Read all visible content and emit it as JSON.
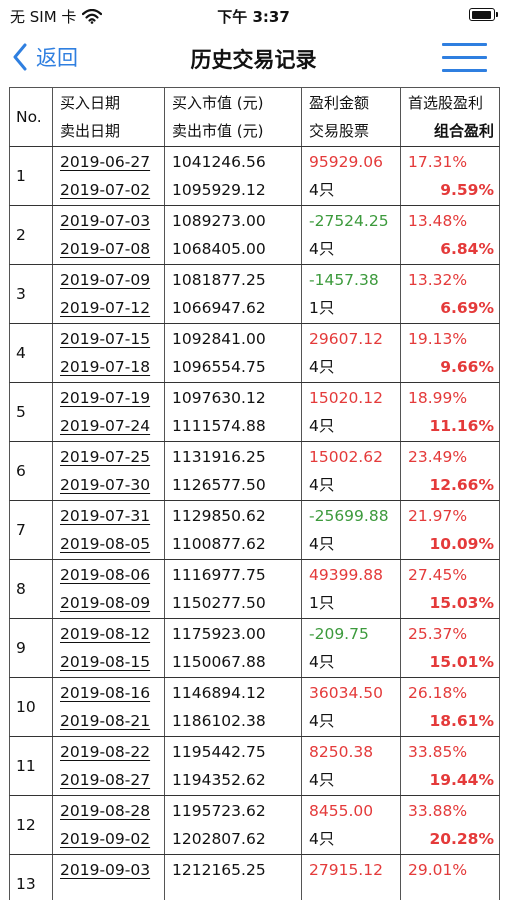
{
  "status": {
    "carrier": "无 SIM 卡",
    "time": "下午 3:37"
  },
  "nav": {
    "back_label": "返回",
    "title": "历史交易记录"
  },
  "table": {
    "header": {
      "no": "No.",
      "buy_date": "买入日期",
      "sell_date": "卖出日期",
      "buy_value": "买入市值 (元)",
      "sell_value": "卖出市值 (元)",
      "profit": "盈利金额",
      "stocks": "交易股票",
      "first_profit": "首选股盈利",
      "combo_profit": "组合盈利"
    },
    "rows": [
      {
        "no": "1",
        "buy_date": "2019-06-27",
        "sell_date": "2019-07-02",
        "buy_value": "1041246.56",
        "sell_value": "1095929.12",
        "profit": "95929.06",
        "stocks": "4只",
        "first_profit": "17.31%",
        "combo_profit": "9.59%"
      },
      {
        "no": "2",
        "buy_date": "2019-07-03",
        "sell_date": "2019-07-08",
        "buy_value": "1089273.00",
        "sell_value": "1068405.00",
        "profit": "-27524.25",
        "stocks": "4只",
        "first_profit": "13.48%",
        "combo_profit": "6.84%"
      },
      {
        "no": "3",
        "buy_date": "2019-07-09",
        "sell_date": "2019-07-12",
        "buy_value": "1081877.25",
        "sell_value": "1066947.62",
        "profit": "-1457.38",
        "stocks": "1只",
        "first_profit": "13.32%",
        "combo_profit": "6.69%"
      },
      {
        "no": "4",
        "buy_date": "2019-07-15",
        "sell_date": "2019-07-18",
        "buy_value": "1092841.00",
        "sell_value": "1096554.75",
        "profit": "29607.12",
        "stocks": "4只",
        "first_profit": "19.13%",
        "combo_profit": "9.66%"
      },
      {
        "no": "5",
        "buy_date": "2019-07-19",
        "sell_date": "2019-07-24",
        "buy_value": "1097630.12",
        "sell_value": "1111574.88",
        "profit": "15020.12",
        "stocks": "4只",
        "first_profit": "18.99%",
        "combo_profit": "11.16%"
      },
      {
        "no": "6",
        "buy_date": "2019-07-25",
        "sell_date": "2019-07-30",
        "buy_value": "1131916.25",
        "sell_value": "1126577.50",
        "profit": "15002.62",
        "stocks": "4只",
        "first_profit": "23.49%",
        "combo_profit": "12.66%"
      },
      {
        "no": "7",
        "buy_date": "2019-07-31",
        "sell_date": "2019-08-05",
        "buy_value": "1129850.62",
        "sell_value": "1100877.62",
        "profit": "-25699.88",
        "stocks": "4只",
        "first_profit": "21.97%",
        "combo_profit": "10.09%"
      },
      {
        "no": "8",
        "buy_date": "2019-08-06",
        "sell_date": "2019-08-09",
        "buy_value": "1116977.75",
        "sell_value": "1150277.50",
        "profit": "49399.88",
        "stocks": "1只",
        "first_profit": "27.45%",
        "combo_profit": "15.03%"
      },
      {
        "no": "9",
        "buy_date": "2019-08-12",
        "sell_date": "2019-08-15",
        "buy_value": "1175923.00",
        "sell_value": "1150067.88",
        "profit": "-209.75",
        "stocks": "4只",
        "first_profit": "25.37%",
        "combo_profit": "15.01%"
      },
      {
        "no": "10",
        "buy_date": "2019-08-16",
        "sell_date": "2019-08-21",
        "buy_value": "1146894.12",
        "sell_value": "1186102.38",
        "profit": "36034.50",
        "stocks": "4只",
        "first_profit": "26.18%",
        "combo_profit": "18.61%"
      },
      {
        "no": "11",
        "buy_date": "2019-08-22",
        "sell_date": "2019-08-27",
        "buy_value": "1195442.75",
        "sell_value": "1194352.62",
        "profit": "8250.38",
        "stocks": "4只",
        "first_profit": "33.85%",
        "combo_profit": "19.44%"
      },
      {
        "no": "12",
        "buy_date": "2019-08-28",
        "sell_date": "2019-09-02",
        "buy_value": "1195723.62",
        "sell_value": "1202807.62",
        "profit": "8455.00",
        "stocks": "4只",
        "first_profit": "33.88%",
        "combo_profit": "20.28%"
      },
      {
        "no": "13",
        "buy_date": "2019-09-03",
        "sell_date": "",
        "buy_value": "1212165.25",
        "sell_value": "",
        "profit": "27915.12",
        "stocks": "",
        "first_profit": "29.01%",
        "combo_profit": ""
      }
    ]
  },
  "colors": {
    "accent": "#2f7fe0",
    "gain": "#e43a3a",
    "loss": "#3c9a3c"
  },
  "icons": {
    "signal": "wifi-icon",
    "battery": "battery-icon",
    "back": "chevron-left-icon",
    "menu": "hamburger-menu-icon"
  }
}
